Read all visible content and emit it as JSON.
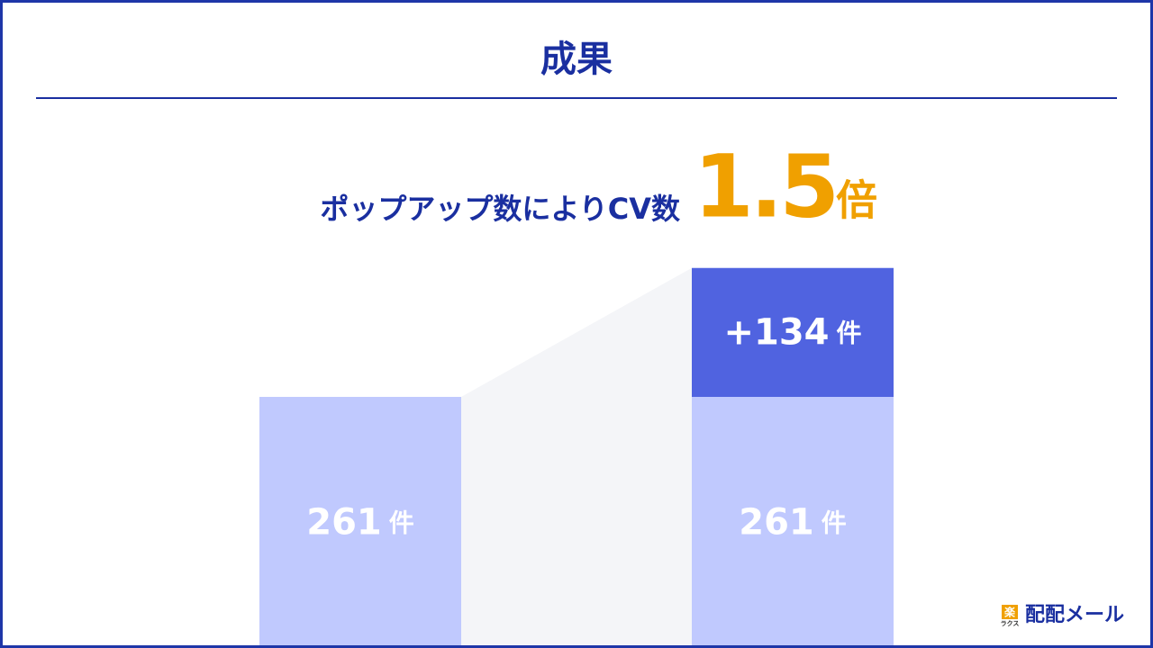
{
  "title": "成果",
  "headline": {
    "text": "ポップアップ数によりCV数",
    "ratio": 1.5,
    "ratio_unit": "倍"
  },
  "chart_data": {
    "type": "stacked-bar",
    "categories": [
      null,
      null
    ],
    "unit": "件",
    "ylim": [
      0,
      400
    ],
    "series": [
      {
        "color": "#c0c9fe",
        "values": [
          261,
          261
        ]
      },
      {
        "color": "#5063e0",
        "values": [
          null,
          134
        ],
        "value_labels": [
          null,
          "+134"
        ]
      }
    ]
  },
  "brand": {
    "badge": "楽",
    "sub": "ラクス",
    "name": "配配メール"
  }
}
